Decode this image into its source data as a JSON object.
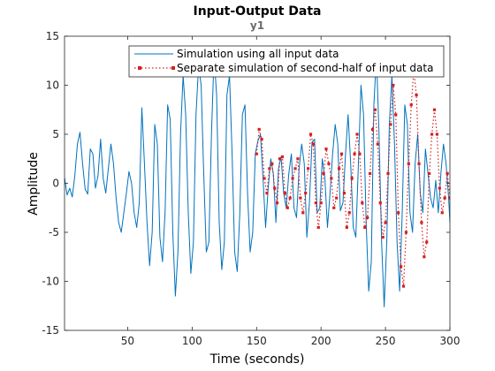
{
  "chart_data": {
    "type": "line",
    "title": "Input-Output Data",
    "subtitle": "y1",
    "xlabel": "Time (seconds)",
    "ylabel": "Amplitude",
    "xlim": [
      1,
      300
    ],
    "ylim": [
      -15,
      15
    ],
    "xticks": [
      50,
      100,
      150,
      200,
      250,
      300
    ],
    "yticks": [
      -15,
      -10,
      -5,
      0,
      5,
      10,
      15
    ],
    "grid": false,
    "legend_location": "top-right",
    "series": [
      {
        "name": "Simulation using all input data",
        "color": "#0072BD",
        "style": "line",
        "x": [
          1,
          3,
          5,
          7,
          9,
          11,
          13,
          15,
          17,
          19,
          21,
          23,
          25,
          27,
          29,
          31,
          33,
          35,
          37,
          39,
          41,
          43,
          45,
          47,
          49,
          51,
          53,
          55,
          57,
          59,
          61,
          63,
          65,
          67,
          69,
          71,
          73,
          75,
          77,
          79,
          81,
          83,
          85,
          87,
          89,
          91,
          93,
          95,
          97,
          99,
          101,
          103,
          105,
          107,
          109,
          111,
          113,
          115,
          117,
          119,
          121,
          123,
          125,
          127,
          129,
          131,
          133,
          135,
          137,
          139,
          141,
          143,
          145,
          147,
          149,
          151,
          153,
          155,
          157,
          159,
          161,
          163,
          165,
          167,
          169,
          171,
          173,
          175,
          177,
          179,
          181,
          183,
          185,
          187,
          189,
          191,
          193,
          195,
          197,
          199,
          201,
          203,
          205,
          207,
          209,
          211,
          213,
          215,
          217,
          219,
          221,
          223,
          225,
          227,
          229,
          231,
          233,
          235,
          237,
          239,
          241,
          243,
          245,
          247,
          249,
          251,
          253,
          255,
          257,
          259,
          261,
          263,
          265,
          267,
          269,
          271,
          273,
          275,
          277,
          279,
          281,
          283,
          285,
          287,
          289,
          291,
          293,
          295,
          297,
          299,
          300
        ],
        "y": [
          0.6,
          -1.2,
          -0.5,
          -1.4,
          0.8,
          4.0,
          5.2,
          2.0,
          -0.6,
          -1.1,
          3.5,
          3.0,
          -0.5,
          0.8,
          4.5,
          0.5,
          -1.0,
          1.5,
          4.0,
          2.0,
          -1.5,
          -4.0,
          -5.0,
          -3.0,
          -1.0,
          1.2,
          0.0,
          -3.0,
          -4.5,
          -2.0,
          7.7,
          2.0,
          -4.0,
          -8.4,
          -5.0,
          6.0,
          4.0,
          -5.5,
          -8.0,
          -3.0,
          8.0,
          6.5,
          -5.0,
          -11.5,
          -7.0,
          5.0,
          11.0,
          7.0,
          -3.0,
          -9.2,
          -6.0,
          7.0,
          12.0,
          10.0,
          1.0,
          -7.0,
          -6.0,
          5.0,
          13.0,
          9.0,
          -4.0,
          -8.8,
          -6.0,
          9.0,
          11.0,
          3.0,
          -7.0,
          -9.0,
          -3.0,
          7.0,
          8.0,
          -1.0,
          -7.0,
          -5.0,
          3.0,
          4.3,
          5.0,
          0.5,
          -4.5,
          -0.5,
          2.5,
          1.0,
          -4.0,
          1.5,
          2.7,
          -1.0,
          -2.5,
          1.0,
          3.0,
          -2.5,
          -3.5,
          1.5,
          4.0,
          2.0,
          -5.5,
          -2.0,
          4.2,
          4.5,
          -3.0,
          -2.5,
          2.5,
          0.5,
          -4.5,
          -1.0,
          3.0,
          6.0,
          4.0,
          -2.8,
          -2.0,
          3.0,
          7.0,
          2.0,
          -4.5,
          -5.5,
          2.0,
          10.0,
          7.0,
          -4.0,
          -11.0,
          -8.0,
          8.0,
          13.0,
          5.0,
          -6.0,
          -12.6,
          -6.0,
          6.0,
          11.0,
          4.0,
          -6.0,
          -11.0,
          -3.0,
          8.0,
          6.0,
          -3.0,
          -5.0,
          2.0,
          5.0,
          -1.0,
          -3.0,
          3.5,
          1.0,
          -1.5,
          -2.5,
          0.3,
          -3.0,
          1.0,
          4.0,
          2.0,
          -1.5,
          -4.0
        ]
      },
      {
        "name": "Separate simulation of second-half of input data",
        "color": "#D62020",
        "style": "dotted-markers",
        "x": [
          150,
          152,
          154,
          156,
          158,
          160,
          162,
          164,
          166,
          168,
          170,
          172,
          174,
          176,
          178,
          180,
          182,
          184,
          186,
          188,
          190,
          192,
          194,
          196,
          198,
          200,
          202,
          204,
          206,
          208,
          210,
          212,
          214,
          216,
          218,
          220,
          222,
          224,
          226,
          228,
          230,
          232,
          234,
          236,
          238,
          240,
          242,
          244,
          246,
          248,
          250,
          252,
          254,
          256,
          258,
          260,
          262,
          264,
          266,
          268,
          270,
          272,
          274,
          276,
          278,
          280,
          282,
          284,
          286,
          288,
          290,
          292,
          294,
          296,
          298,
          300
        ],
        "y": [
          3.0,
          5.5,
          4.5,
          0.5,
          -1.0,
          1.5,
          2.0,
          -0.5,
          -2.0,
          2.5,
          2.7,
          -1.0,
          -2.5,
          -1.5,
          0.5,
          1.5,
          2.5,
          -1.5,
          -3.0,
          -1.0,
          1.5,
          5.0,
          4.0,
          -2.0,
          -4.5,
          -2.0,
          1.0,
          3.5,
          2.0,
          0.5,
          -2.5,
          -1.5,
          1.5,
          3.0,
          -1.0,
          -4.5,
          -3.0,
          0.5,
          3.0,
          5.0,
          3.0,
          -2.0,
          -4.5,
          -3.5,
          1.0,
          5.5,
          7.5,
          4.0,
          -2.0,
          -5.5,
          -4.0,
          1.0,
          6.0,
          10.0,
          7.0,
          -3.0,
          -8.5,
          -10.5,
          -5.0,
          2.0,
          8.0,
          11.5,
          9.0,
          2.0,
          -4.0,
          -7.5,
          -6.0,
          1.0,
          5.0,
          7.5,
          5.0,
          -0.5,
          -3.0,
          -1.5,
          1.0,
          -1.5
        ]
      }
    ]
  }
}
